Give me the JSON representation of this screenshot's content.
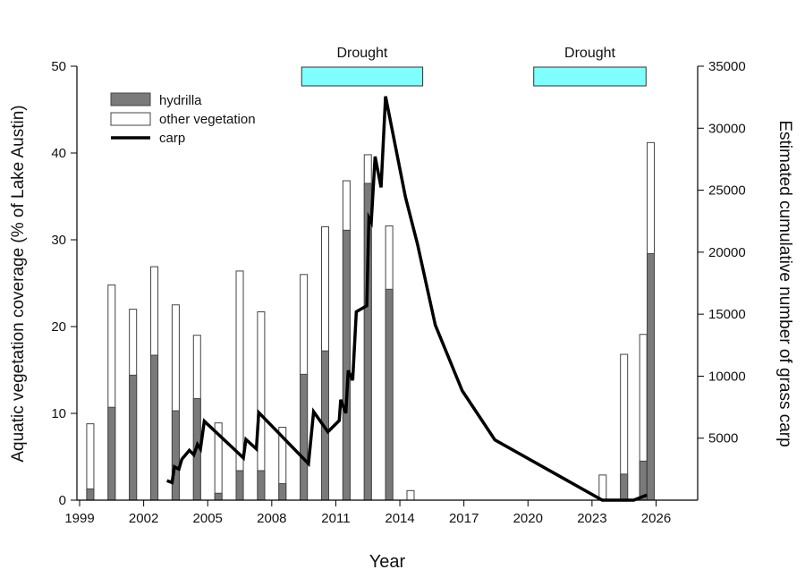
{
  "chart_data": {
    "type": "bar+line",
    "xlabel": "Year",
    "ylabel_left": "Aquatic vegetation coverage (% of Lake Austin)",
    "ylabel_right": "Estimated cumulative number of grass carp",
    "xlim": [
      1999,
      2028
    ],
    "ylim_left": [
      0,
      50
    ],
    "ylim_right": [
      0,
      35000
    ],
    "x_ticks": [
      1999,
      2002,
      2005,
      2008,
      2011,
      2014,
      2017,
      2020,
      2023,
      2026
    ],
    "y_left_ticks": [
      0,
      10,
      20,
      30,
      40,
      50
    ],
    "y_right_ticks": [
      5000,
      10000,
      15000,
      20000,
      25000,
      30000,
      35000
    ],
    "grid": false,
    "legend": {
      "placement": "top-left",
      "entries": [
        "hydrilla",
        "other vegetation",
        "carp"
      ]
    },
    "colors": {
      "hydrilla": "#7a7a7a",
      "other_vegetation": "#ffffff",
      "carp": "#000000",
      "drought": "#80ffff"
    },
    "bars": {
      "x": [
        1999.5,
        2000.5,
        2001.5,
        2002.5,
        2003.5,
        2004.5,
        2005.5,
        2006.5,
        2007.5,
        2008.5,
        2009.5,
        2010.5,
        2011.5,
        2012.5,
        2013.5,
        2014.5,
        2023.5,
        2024.5,
        2025.4,
        2025.75
      ],
      "total": [
        8.8,
        24.8,
        22.0,
        26.9,
        22.5,
        19.0,
        8.9,
        26.4,
        21.7,
        8.4,
        26.0,
        31.5,
        36.8,
        39.8,
        31.6,
        1.1,
        2.9,
        16.8,
        19.1,
        41.2
      ],
      "hydrilla": [
        1.3,
        10.7,
        14.4,
        16.7,
        10.3,
        11.7,
        0.8,
        3.4,
        3.4,
        1.9,
        14.5,
        17.2,
        31.1,
        36.5,
        24.3,
        0,
        0,
        3.0,
        4.5,
        28.4
      ]
    },
    "carp": {
      "x": [
        2003.09,
        2003.33,
        2003.44,
        2003.65,
        2003.79,
        2004.14,
        2004.35,
        2004.52,
        2004.66,
        2004.84,
        2006.67,
        2006.79,
        2007.28,
        2007.39,
        2009.72,
        2009.96,
        2010.63,
        2011.16,
        2011.23,
        2011.47,
        2011.58,
        2011.79,
        2011.96,
        2012.45,
        2012.55,
        2012.66,
        2012.84,
        2013.12,
        2013.33,
        2014.26,
        2014.83,
        2015.66,
        2016.92,
        2018.45,
        2023.48,
        2024.95,
        2025.57
      ],
      "y": [
        1570,
        1420,
        2690,
        2500,
        3300,
        4020,
        3660,
        4500,
        4130,
        6370,
        3410,
        4900,
        4130,
        7070,
        2940,
        7140,
        5510,
        6420,
        8100,
        7020,
        10460,
        9670,
        15200,
        15680,
        22780,
        22420,
        27710,
        25230,
        32570,
        24460,
        20620,
        14120,
        8830,
        4860,
        0,
        0,
        410
      ]
    },
    "droughts": [
      {
        "label": "Drought",
        "start": 2009.4,
        "end": 2015.07
      },
      {
        "label": "Drought",
        "start": 2020.27,
        "end": 2025.53
      }
    ]
  }
}
